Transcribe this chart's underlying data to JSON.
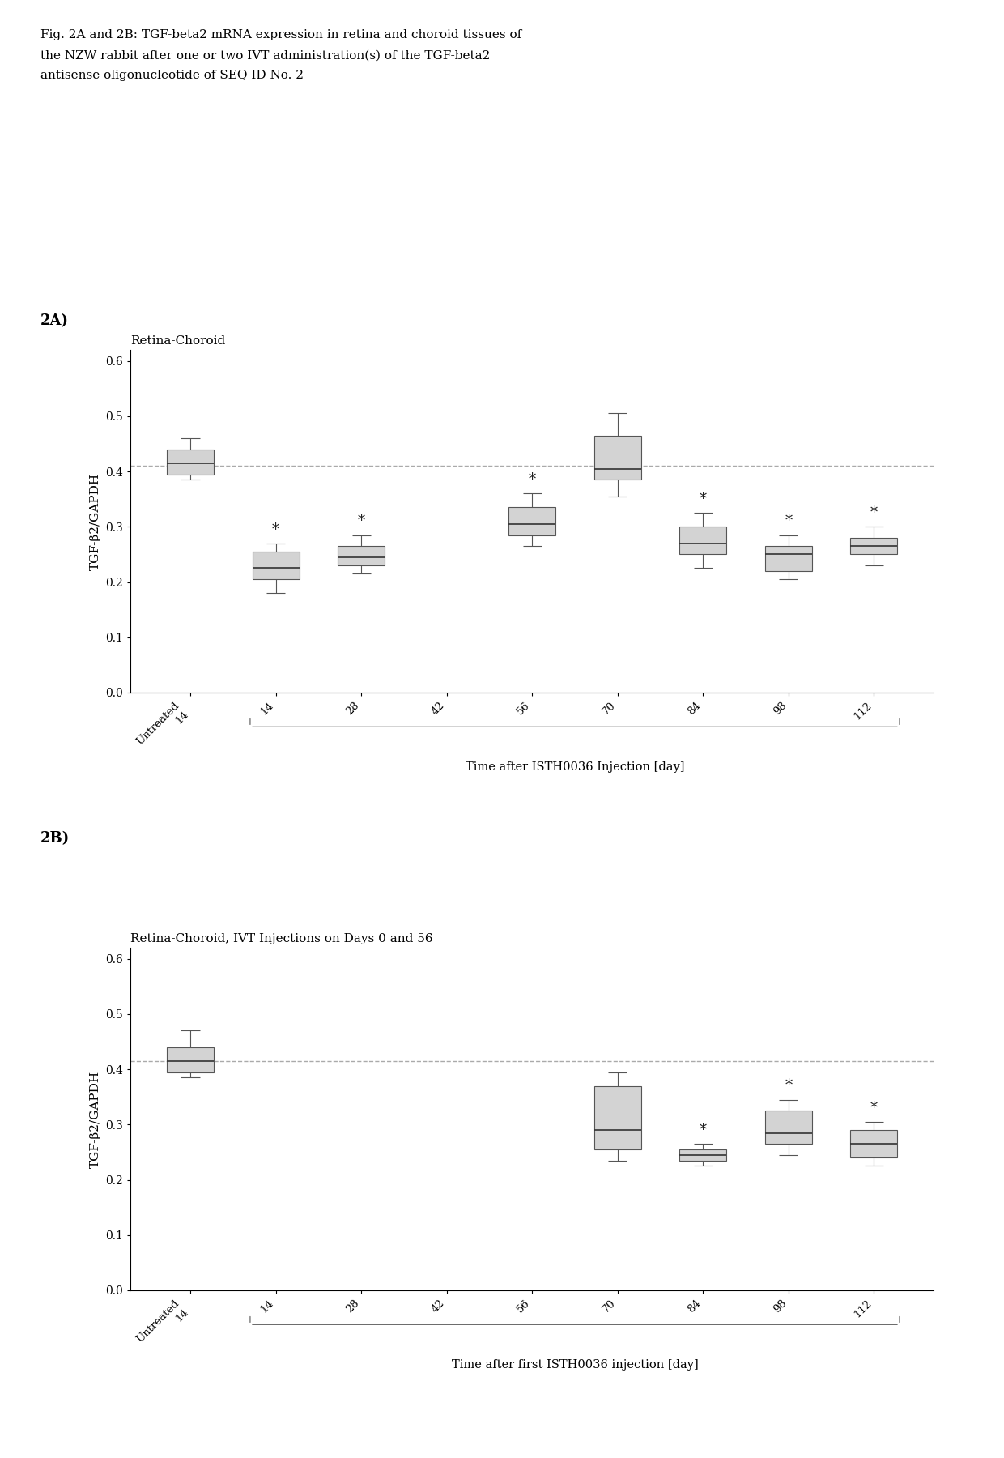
{
  "fig_title_line1": "Fig. 2A and 2B: TGF-beta2 mRNA expression in retina and choroid tissues of",
  "fig_title_line2": "the NZW rabbit after one or two IVT administration(s) of the TGF-beta2",
  "fig_title_line3": "antisense oligonucleotide of SEQ ID No. 2",
  "label_2A": "2A)",
  "label_2B": "2B)",
  "plot_A": {
    "title": "Retina-Choroid",
    "ylabel": "TGF-β2/GAPDH",
    "xlabel": "Time after ISTH0036 Injection [day]",
    "ylim": [
      0.0,
      0.62
    ],
    "yticks": [
      0.0,
      0.1,
      0.2,
      0.3,
      0.4,
      0.5,
      0.6
    ],
    "hline": 0.41,
    "groups": [
      "Untreated\n14",
      "14",
      "28",
      "42",
      "56",
      "70",
      "84",
      "98",
      "112"
    ],
    "group_positions": [
      0,
      1,
      2,
      3,
      4,
      5,
      6,
      7,
      8
    ],
    "boxes": [
      {
        "median": 0.415,
        "q1": 0.395,
        "q3": 0.44,
        "whislo": 0.385,
        "whishi": 0.46,
        "star": false
      },
      {
        "median": 0.225,
        "q1": 0.205,
        "q3": 0.255,
        "whislo": 0.18,
        "whishi": 0.27,
        "star": true
      },
      {
        "median": 0.245,
        "q1": 0.23,
        "q3": 0.265,
        "whislo": 0.215,
        "whishi": 0.285,
        "star": true
      },
      null,
      {
        "median": 0.305,
        "q1": 0.285,
        "q3": 0.335,
        "whislo": 0.265,
        "whishi": 0.36,
        "star": true
      },
      {
        "median": 0.405,
        "q1": 0.385,
        "q3": 0.465,
        "whislo": 0.355,
        "whishi": 0.505,
        "star": false
      },
      {
        "median": 0.27,
        "q1": 0.25,
        "q3": 0.3,
        "whislo": 0.225,
        "whishi": 0.325,
        "star": true
      },
      {
        "median": 0.25,
        "q1": 0.22,
        "q3": 0.265,
        "whislo": 0.205,
        "whishi": 0.285,
        "star": true
      },
      {
        "median": 0.265,
        "q1": 0.25,
        "q3": 0.28,
        "whislo": 0.23,
        "whishi": 0.3,
        "star": true
      }
    ]
  },
  "plot_B": {
    "title": "Retina-Choroid, IVT Injections on Days 0 and 56",
    "ylabel": "TGF-β2/GAPDH",
    "xlabel": "Time after first ISTH0036 injection [day]",
    "ylim": [
      0.0,
      0.62
    ],
    "yticks": [
      0.0,
      0.1,
      0.2,
      0.3,
      0.4,
      0.5,
      0.6
    ],
    "hline": 0.415,
    "groups": [
      "Untreated\n14",
      "14",
      "28",
      "42",
      "56",
      "70",
      "84",
      "98",
      "112"
    ],
    "group_positions": [
      0,
      1,
      2,
      3,
      4,
      5,
      6,
      7,
      8
    ],
    "boxes": [
      {
        "median": 0.415,
        "q1": 0.395,
        "q3": 0.44,
        "whislo": 0.385,
        "whishi": 0.47,
        "star": false
      },
      null,
      null,
      null,
      null,
      {
        "median": 0.29,
        "q1": 0.255,
        "q3": 0.37,
        "whislo": 0.235,
        "whishi": 0.395,
        "star": false
      },
      {
        "median": 0.245,
        "q1": 0.235,
        "q3": 0.255,
        "whislo": 0.225,
        "whishi": 0.265,
        "star": true
      },
      {
        "median": 0.285,
        "q1": 0.265,
        "q3": 0.325,
        "whislo": 0.245,
        "whishi": 0.345,
        "star": true
      },
      {
        "median": 0.265,
        "q1": 0.24,
        "q3": 0.29,
        "whislo": 0.225,
        "whishi": 0.305,
        "star": true
      }
    ]
  },
  "box_color": "#d3d3d3",
  "box_edge_color": "#555555",
  "median_color": "#333333",
  "whisker_color": "#555555",
  "hline_color": "#aaaaaa",
  "star_color": "#222222",
  "bracket_color": "#555555"
}
